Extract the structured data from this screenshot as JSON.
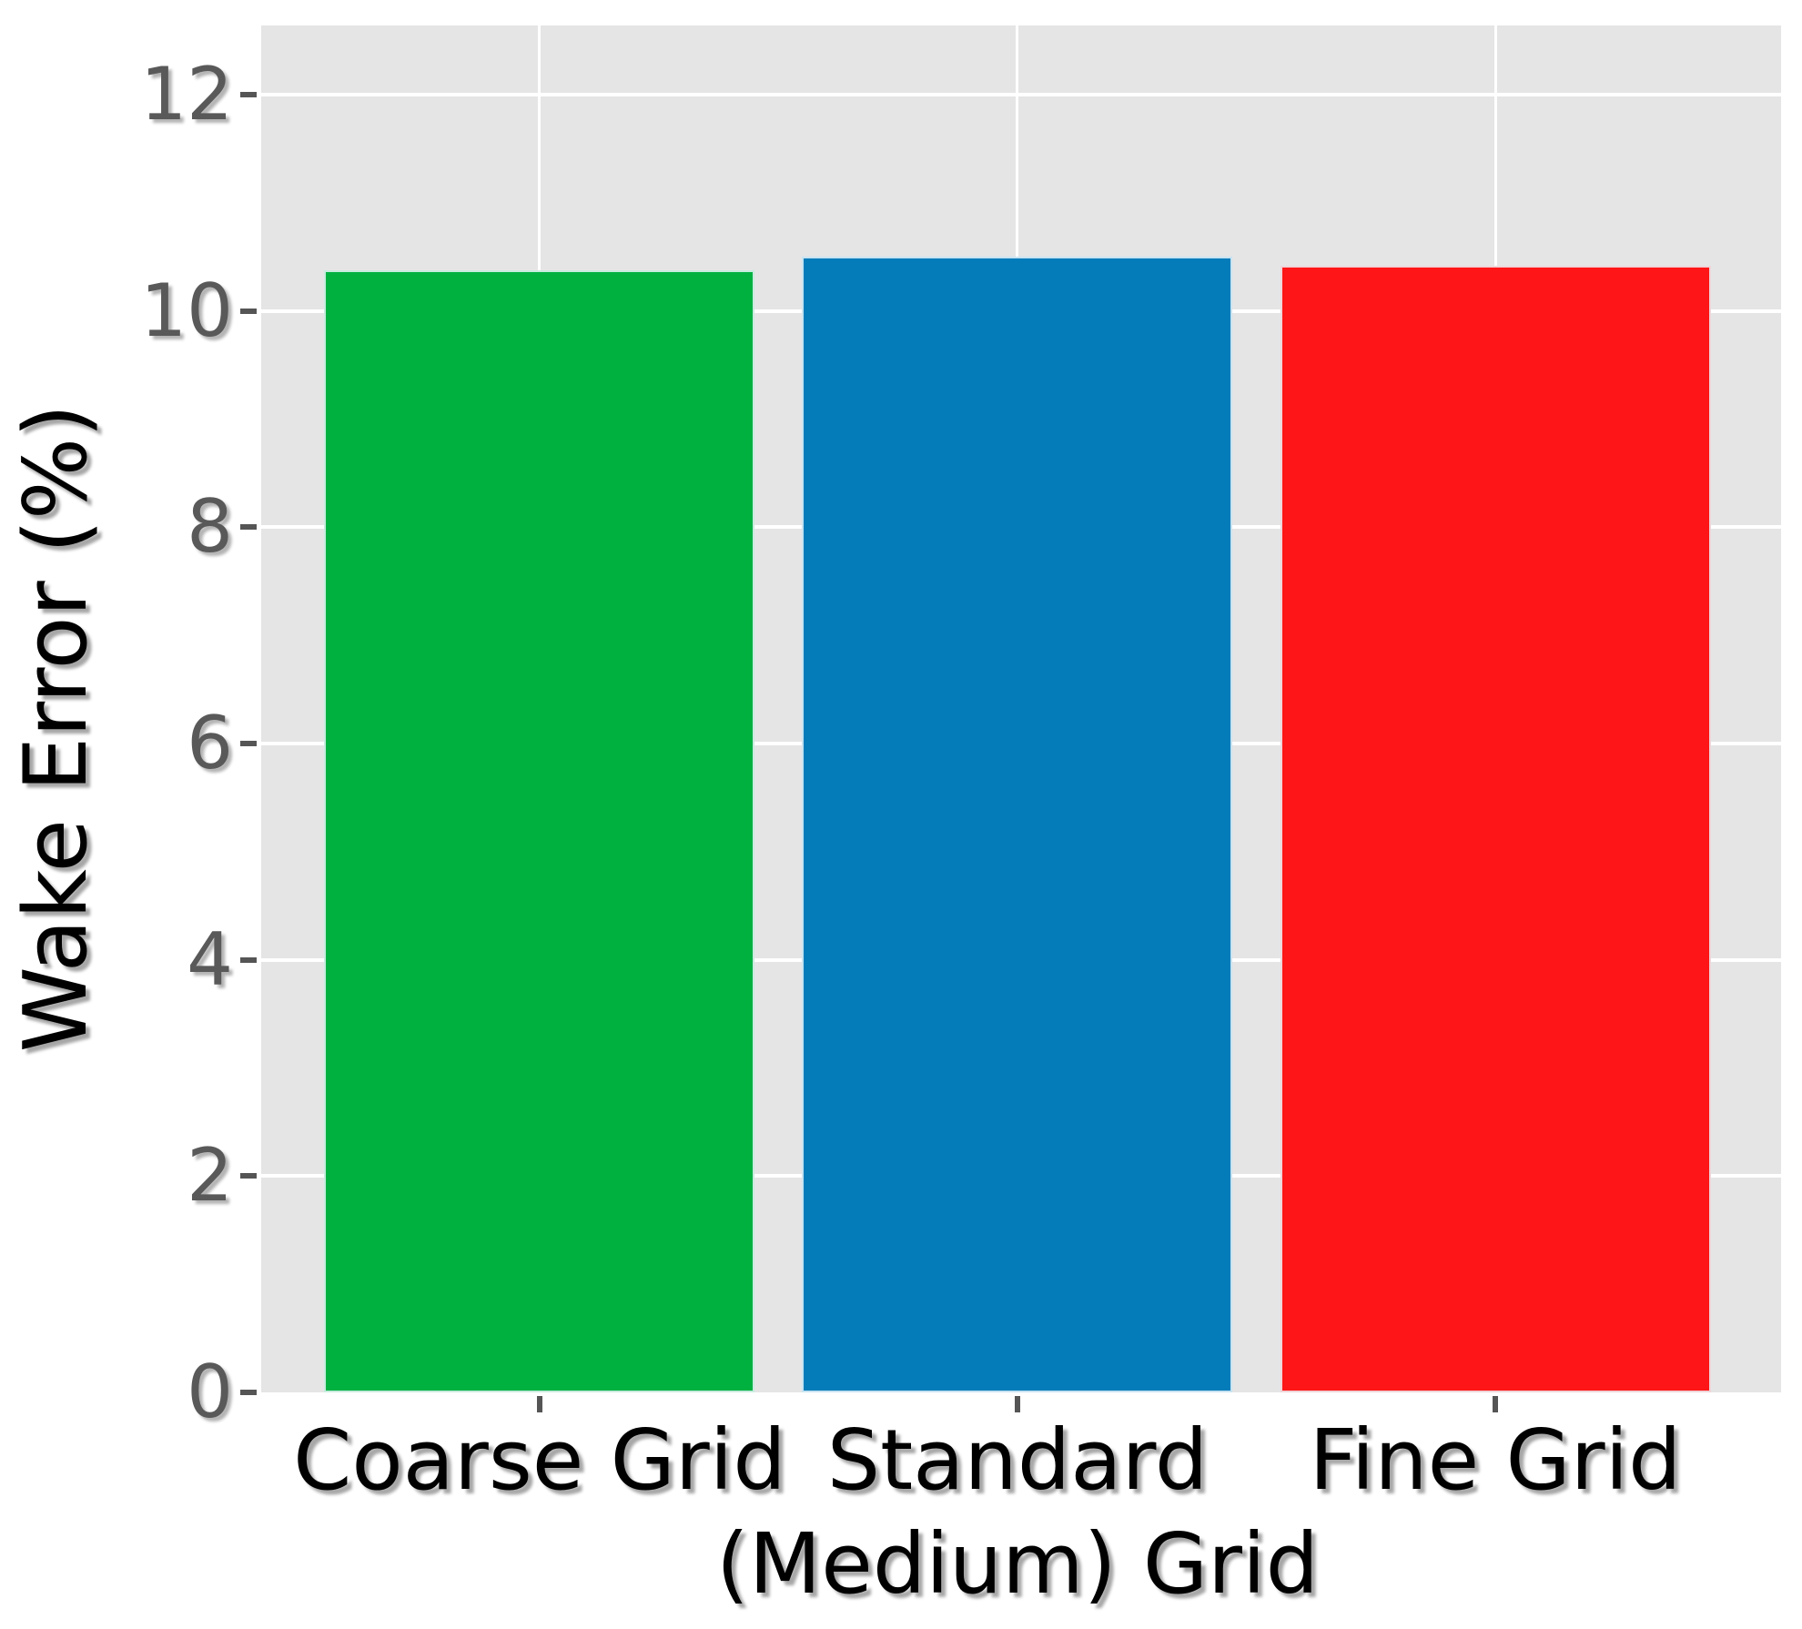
{
  "chart_data": {
    "type": "bar",
    "title": "",
    "categories": [
      "Coarse Grid",
      "Standard (Medium) Grid",
      "Fine Grid"
    ],
    "category_lines": [
      [
        "Coarse Grid"
      ],
      [
        "Standard",
        "(Medium) Grid"
      ],
      [
        "Fine Grid"
      ]
    ],
    "values": [
      10.38,
      10.5,
      10.42
    ],
    "bar_colors": [
      "#00b140",
      "#047cba",
      "#fd1517"
    ],
    "xlabel": "",
    "ylabel": "Wake Error (%)",
    "ylim": [
      0,
      12.64
    ],
    "yticks": [
      0,
      2,
      4,
      6,
      8,
      10,
      12
    ],
    "grid": "on",
    "legend": "none",
    "styles": {
      "figure_background": "#ffffff",
      "plot_background": "#e5e5e6",
      "gridline_color": "#ffffff",
      "tick_label_color": "#595959",
      "axis_label_color": "#000000",
      "tick_mark_color": "#555555"
    }
  }
}
